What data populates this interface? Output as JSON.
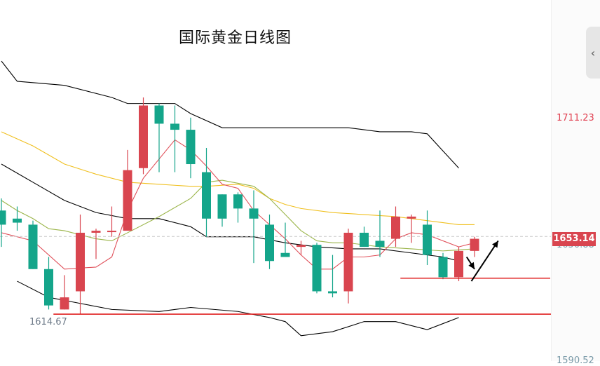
{
  "title": "国际黄金日线图",
  "axis": {
    "tick_1711": "1711.23",
    "tick_1650": "1650.88",
    "tick_1590": "1590.52"
  },
  "current_price": "1653.14",
  "low_label": "1614.67",
  "colors": {
    "up": "#d9454f",
    "down": "#14a58a",
    "ma_short": "#e0505a",
    "ma_mid": "#9bb54a",
    "ma_long": "#f0c020",
    "boll": "#000000",
    "support": "#e02020"
  },
  "chart_data": {
    "type": "candlestick",
    "title": "国际黄金日线图",
    "y_ticks": [
      1711.23,
      1650.88,
      1590.52
    ],
    "ylim": [
      1590.52,
      1730
    ],
    "current_price": 1653.14,
    "marked_low": 1614.67,
    "candles": [
      {
        "o": 1666,
        "h": 1672,
        "l": 1648,
        "c": 1659
      },
      {
        "o": 1662,
        "h": 1668,
        "l": 1656,
        "c": 1660
      },
      {
        "o": 1659,
        "h": 1661,
        "l": 1637,
        "c": 1637
      },
      {
        "o": 1637,
        "h": 1643,
        "l": 1617,
        "c": 1619
      },
      {
        "o": 1617,
        "h": 1634,
        "l": 1617,
        "c": 1623
      },
      {
        "o": 1626,
        "h": 1664,
        "l": 1614.67,
        "c": 1655
      },
      {
        "o": 1655,
        "h": 1657,
        "l": 1642,
        "c": 1656
      },
      {
        "o": 1656,
        "h": 1668,
        "l": 1653,
        "c": 1656
      },
      {
        "o": 1656,
        "h": 1696,
        "l": 1656,
        "c": 1686
      },
      {
        "o": 1687,
        "h": 1722,
        "l": 1684,
        "c": 1718
      },
      {
        "o": 1718,
        "h": 1719,
        "l": 1685,
        "c": 1709
      },
      {
        "o": 1709,
        "h": 1718,
        "l": 1685,
        "c": 1706
      },
      {
        "o": 1706,
        "h": 1712,
        "l": 1682,
        "c": 1689
      },
      {
        "o": 1685,
        "h": 1697,
        "l": 1653,
        "c": 1662
      },
      {
        "o": 1674,
        "h": 1674,
        "l": 1658,
        "c": 1662
      },
      {
        "o": 1674,
        "h": 1675,
        "l": 1660,
        "c": 1667
      },
      {
        "o": 1667,
        "h": 1676,
        "l": 1640,
        "c": 1662
      },
      {
        "o": 1659,
        "h": 1664,
        "l": 1637,
        "c": 1641
      },
      {
        "o": 1645,
        "h": 1660,
        "l": 1643,
        "c": 1643
      },
      {
        "o": 1648,
        "h": 1651,
        "l": 1644,
        "c": 1649
      },
      {
        "o": 1649,
        "h": 1650,
        "l": 1625,
        "c": 1626
      },
      {
        "o": 1626,
        "h": 1644,
        "l": 1623,
        "c": 1625
      },
      {
        "o": 1626,
        "h": 1657,
        "l": 1620,
        "c": 1655
      },
      {
        "o": 1655,
        "h": 1658,
        "l": 1648,
        "c": 1648
      },
      {
        "o": 1651,
        "h": 1666,
        "l": 1643,
        "c": 1648
      },
      {
        "o": 1652,
        "h": 1668,
        "l": 1648,
        "c": 1663
      },
      {
        "o": 1662,
        "h": 1664,
        "l": 1650,
        "c": 1663
      },
      {
        "o": 1659,
        "h": 1666,
        "l": 1639,
        "c": 1644
      },
      {
        "o": 1643,
        "h": 1645,
        "l": 1632,
        "c": 1633
      },
      {
        "o": 1633,
        "h": 1648,
        "l": 1631,
        "c": 1646
      },
      {
        "o": 1646,
        "h": 1653,
        "l": 1643,
        "c": 1652
      }
    ],
    "ma_short": [
      [
        0,
        1655
      ],
      [
        2,
        1651
      ],
      [
        4,
        1637
      ],
      [
        6,
        1638
      ],
      [
        7,
        1643
      ],
      [
        8,
        1666
      ],
      [
        9,
        1682
      ],
      [
        11,
        1701
      ],
      [
        12,
        1696
      ],
      [
        13,
        1688
      ],
      [
        14,
        1679
      ],
      [
        15,
        1677
      ],
      [
        16,
        1666
      ],
      [
        17,
        1659
      ],
      [
        18,
        1652
      ],
      [
        19,
        1644
      ],
      [
        20,
        1637
      ],
      [
        21,
        1637
      ],
      [
        22,
        1643
      ],
      [
        23,
        1643
      ],
      [
        24,
        1644
      ],
      [
        25,
        1652
      ],
      [
        26,
        1655
      ],
      [
        27,
        1654
      ],
      [
        28,
        1651
      ],
      [
        29,
        1648
      ],
      [
        30,
        1650
      ]
    ],
    "ma_mid": [
      [
        0,
        1671
      ],
      [
        1,
        1666
      ],
      [
        2,
        1662
      ],
      [
        3,
        1657
      ],
      [
        4,
        1656
      ],
      [
        6,
        1652
      ],
      [
        7,
        1651
      ],
      [
        8,
        1655
      ],
      [
        10,
        1663
      ],
      [
        12,
        1672
      ],
      [
        13,
        1680
      ],
      [
        14,
        1681
      ],
      [
        16,
        1678
      ],
      [
        17,
        1672
      ],
      [
        18,
        1664
      ],
      [
        19,
        1656
      ],
      [
        20,
        1651
      ],
      [
        21,
        1650
      ],
      [
        22,
        1650
      ],
      [
        24,
        1648
      ],
      [
        26,
        1647
      ],
      [
        28,
        1646
      ],
      [
        30,
        1647
      ]
    ],
    "ma_long": [
      [
        0,
        1705
      ],
      [
        2,
        1698
      ],
      [
        4,
        1689
      ],
      [
        6,
        1684
      ],
      [
        8,
        1680
      ],
      [
        10,
        1679
      ],
      [
        12,
        1678
      ],
      [
        13,
        1678
      ],
      [
        15,
        1679
      ],
      [
        16,
        1677
      ],
      [
        17,
        1672
      ],
      [
        18,
        1669
      ],
      [
        19,
        1667
      ],
      [
        21,
        1665
      ],
      [
        23,
        1664
      ],
      [
        25,
        1663
      ],
      [
        27,
        1661
      ],
      [
        29,
        1659
      ],
      [
        30,
        1659
      ]
    ],
    "boll_upper": [
      [
        0,
        1740
      ],
      [
        1,
        1730
      ],
      [
        4,
        1728
      ],
      [
        7,
        1722
      ],
      [
        8,
        1719
      ],
      [
        11,
        1719
      ],
      [
        12,
        1714
      ],
      [
        14,
        1707
      ],
      [
        18,
        1707
      ],
      [
        22,
        1707
      ],
      [
        24,
        1705
      ],
      [
        26,
        1705
      ],
      [
        27,
        1704
      ],
      [
        29,
        1687
      ]
    ],
    "boll_mid": [
      [
        0,
        1689
      ],
      [
        2,
        1680
      ],
      [
        4,
        1671
      ],
      [
        6,
        1665
      ],
      [
        8,
        1662
      ],
      [
        10,
        1662
      ],
      [
        12,
        1658
      ],
      [
        13,
        1653
      ],
      [
        16,
        1653
      ],
      [
        18,
        1650
      ],
      [
        20,
        1648
      ],
      [
        22,
        1647
      ],
      [
        24,
        1647
      ],
      [
        26,
        1645
      ],
      [
        28,
        1643
      ],
      [
        29,
        1641
      ]
    ],
    "boll_lower": [
      [
        1,
        1631
      ],
      [
        3,
        1623
      ],
      [
        5,
        1620
      ],
      [
        7,
        1617
      ],
      [
        10,
        1616
      ],
      [
        12,
        1618
      ],
      [
        15,
        1616
      ],
      [
        17,
        1613
      ],
      [
        18,
        1611
      ],
      [
        19,
        1604
      ],
      [
        21,
        1606
      ],
      [
        23,
        1611
      ],
      [
        25,
        1611
      ],
      [
        27,
        1607
      ],
      [
        29,
        1613
      ]
    ],
    "support_lines": [
      {
        "level": 1632.5,
        "from": 25.3,
        "to": 34.8
      },
      {
        "level": 1614.67,
        "from": 3.3,
        "to": 35
      }
    ],
    "arrows": [
      {
        "from": [
          29.5,
          1643
        ],
        "to": [
          30,
          1637
        ]
      },
      {
        "from": [
          29.8,
          1631
        ],
        "to": [
          31.5,
          1651
        ]
      }
    ]
  }
}
